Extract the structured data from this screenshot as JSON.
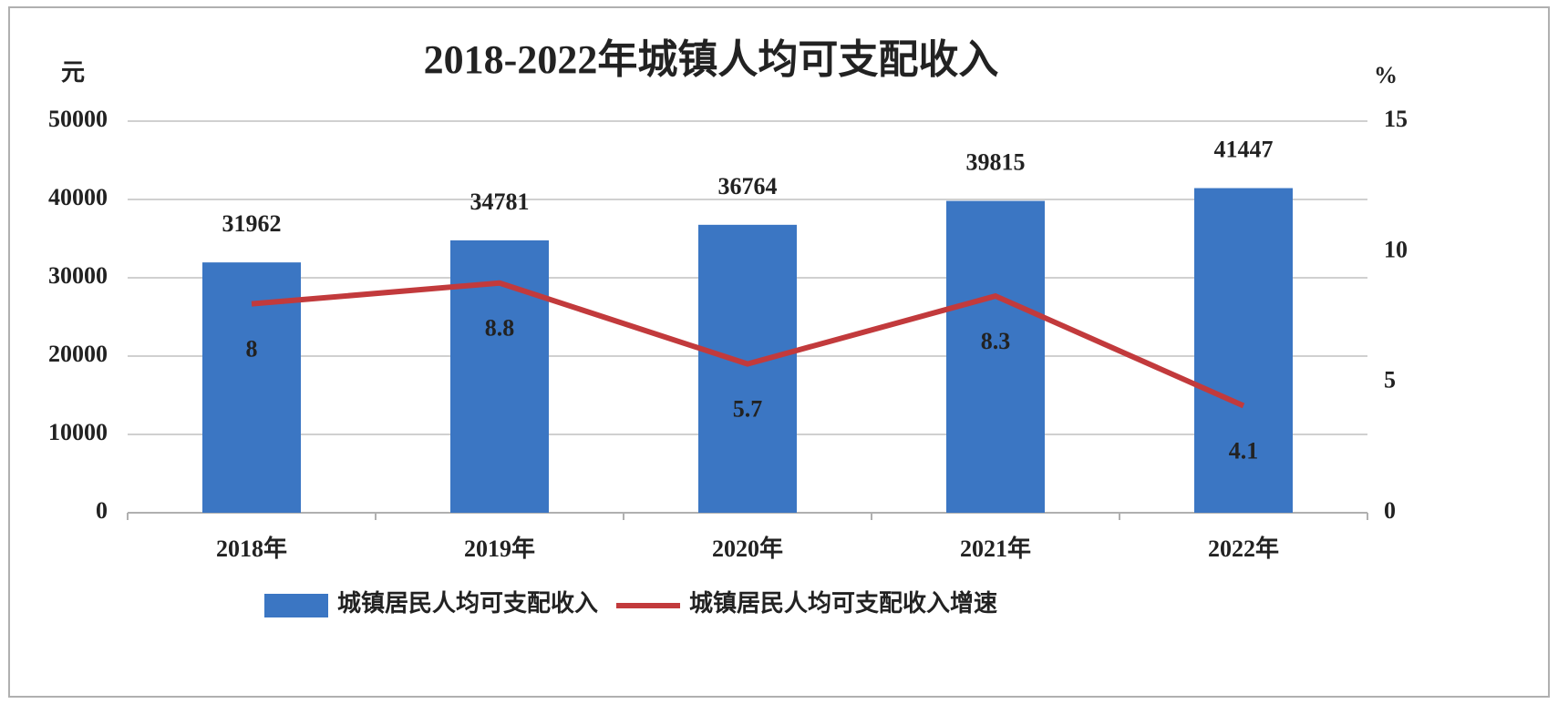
{
  "chart_data": {
    "type": "bar",
    "title": "2018-2022年城镇人均可支配收入",
    "y_label": "元",
    "y2_label": "%",
    "categories": [
      "2018年",
      "2019年",
      "2020年",
      "2021年",
      "2022年"
    ],
    "series": [
      {
        "name": "城镇居民人均可支配收入",
        "type": "bar",
        "color": "#3b76c3",
        "values": [
          31962,
          34781,
          36764,
          39815,
          41447
        ]
      },
      {
        "name": "城镇居民人均可支配收入增速",
        "type": "line",
        "axis": "y2",
        "color": "#c23a3c",
        "values": [
          8,
          8.8,
          5.7,
          8.3,
          4.1
        ]
      }
    ],
    "ylim": [
      0,
      50000
    ],
    "yticks": [
      0,
      10000,
      20000,
      30000,
      40000,
      50000
    ],
    "y2lim": [
      0,
      15
    ],
    "y2ticks": [
      0,
      5,
      10,
      15
    ],
    "grid": true,
    "legend": "bottom"
  }
}
